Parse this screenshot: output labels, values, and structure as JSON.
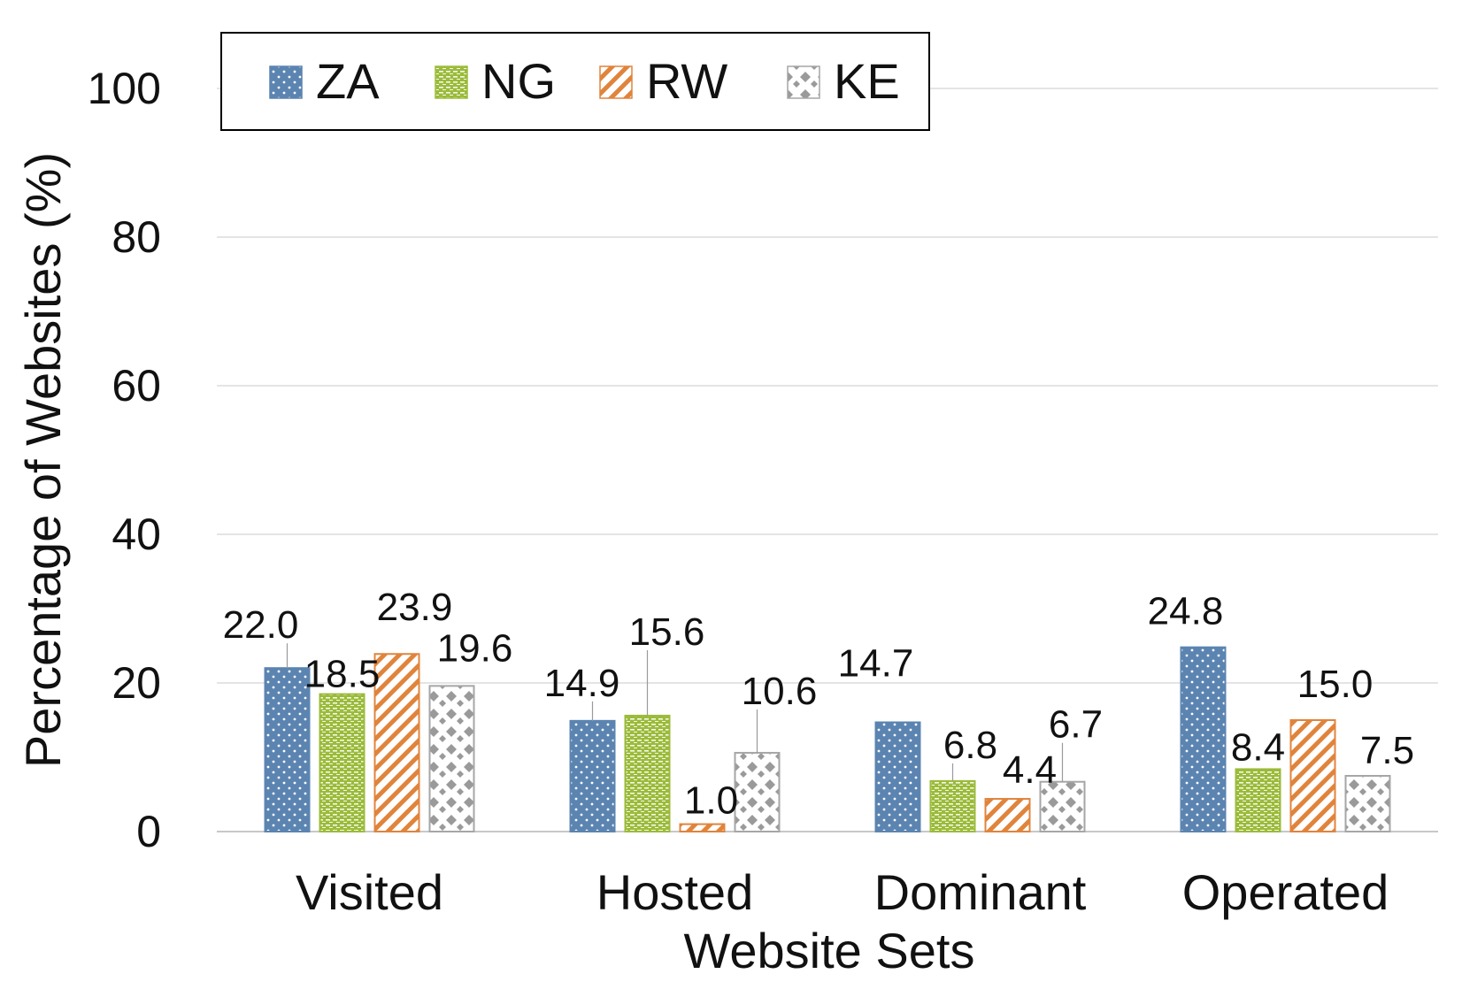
{
  "chart_data": {
    "type": "bar",
    "title": "",
    "xlabel": "Website Sets",
    "ylabel": "Percentage of Websites (%)",
    "ylim": [
      0,
      100
    ],
    "yticks": [
      0,
      20,
      40,
      60,
      80,
      100
    ],
    "grid": true,
    "legend_position": "top-left",
    "categories": [
      "Visited",
      "Hosted",
      "Dominant",
      "Operated"
    ],
    "series": [
      {
        "name": "ZA",
        "values": [
          22.0,
          14.9,
          14.7,
          24.8
        ],
        "labels": [
          "22.0",
          "14.9",
          "14.7",
          "24.8"
        ],
        "color": "#5b84b1",
        "pattern": "dots"
      },
      {
        "name": "NG",
        "values": [
          18.5,
          15.6,
          6.8,
          8.4
        ],
        "labels": [
          "18.5",
          "15.6",
          "6.8",
          "8.4"
        ],
        "color": "#9bbb3b",
        "pattern": "dashes"
      },
      {
        "name": "RW",
        "values": [
          23.9,
          1.0,
          4.4,
          15.0
        ],
        "labels": [
          "23.9",
          "1.0",
          "4.4",
          "15.0"
        ],
        "color": "#e0843c",
        "pattern": "diagonal"
      },
      {
        "name": "KE",
        "values": [
          19.6,
          10.6,
          6.7,
          7.5
        ],
        "labels": [
          "19.6",
          "10.6",
          "6.7",
          "7.5"
        ],
        "color": "#a6a6a6",
        "pattern": "diamonds"
      }
    ]
  }
}
